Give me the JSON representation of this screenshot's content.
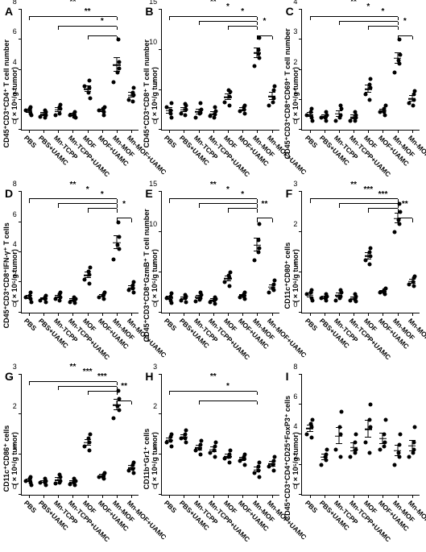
{
  "groups": [
    "PBS",
    "PBS+UAMC",
    "Mn-TCPP",
    "Mn-TCPP+UAMC",
    "MOF",
    "MOF+UAMC",
    "Mn-MOF",
    "Mn-MOF+UAMC"
  ],
  "colors": {
    "dot": "#000000",
    "axis": "#000000",
    "bg": "#ffffff"
  },
  "font": {
    "panel_letter_size": 14,
    "axis_label_size": 9,
    "tick_size": 9,
    "xlabel_size": 8.5
  },
  "panels": [
    {
      "id": "A",
      "ylabel": "CD45⁺CD3⁺CD4⁺ T cell number\n(×10⁶/g tumor)",
      "ymax": 8,
      "ytick": 2,
      "points": [
        [
          1.3,
          1.0,
          1.5,
          1.1,
          1.4
        ],
        [
          0.9,
          1.2,
          1.0,
          1.3,
          0.8
        ],
        [
          1.0,
          1.7,
          1.4,
          1.1,
          1.5
        ],
        [
          1.0,
          0.8,
          1.2,
          0.9,
          1.1
        ],
        [
          2.9,
          2.1,
          3.3,
          2.8,
          2.5
        ],
        [
          1.3,
          1.5,
          1.0,
          1.2,
          1.4
        ],
        [
          3.2,
          4.1,
          4.5,
          6.0,
          3.8
        ],
        [
          2.0,
          2.8,
          2.3,
          2.5,
          1.9
        ]
      ],
      "sig": [
        {
          "from": 0,
          "to": 6,
          "lvl": 3,
          "txt": "**"
        },
        {
          "from": 2,
          "to": 6,
          "lvl": 2,
          "txt": "**"
        },
        {
          "from": 4,
          "to": 6,
          "lvl": 1,
          "txt": "*"
        }
      ]
    },
    {
      "id": "B",
      "ylabel": "CD45⁺CD3⁺CD8⁺ T cell number\n(×10⁶/g tumor)",
      "ymax": 15,
      "ytick": 5,
      "points": [
        [
          2.8,
          1.5,
          3.3,
          2.0,
          2.4
        ],
        [
          2.0,
          3.0,
          2.5,
          1.8,
          3.2
        ],
        [
          1.5,
          2.5,
          2.1,
          3.3,
          2.0
        ],
        [
          1.7,
          2.3,
          1.9,
          2.8,
          1.5
        ],
        [
          3.5,
          4.8,
          4.2,
          3.0,
          5.0
        ],
        [
          2.3,
          3.0,
          2.0,
          2.5,
          2.8
        ],
        [
          8.0,
          11.5,
          9.0,
          10.0,
          9.5
        ],
        [
          3.0,
          5.5,
          4.0,
          5.0,
          3.5
        ]
      ],
      "sig": [
        {
          "from": 0,
          "to": 6,
          "lvl": 3,
          "txt": "**"
        },
        {
          "from": 4,
          "to": 6,
          "lvl": 2,
          "txt": "*"
        },
        {
          "from": 6,
          "to": 7,
          "lvl": 1,
          "txt": "*"
        },
        {
          "from": 2,
          "to": 6,
          "lvl": 2.5,
          "txt": "*"
        }
      ]
    },
    {
      "id": "C",
      "ylabel": "CD45⁺CD3⁺CD8⁺CD69⁺ T cell number\n(×10⁶/g tumor)",
      "ymax": 4,
      "ytick": 1,
      "points": [
        [
          0.5,
          0.3,
          0.7,
          0.4,
          0.6
        ],
        [
          0.4,
          0.5,
          0.3,
          0.6,
          0.4
        ],
        [
          0.3,
          0.7,
          0.5,
          0.8,
          0.4
        ],
        [
          0.3,
          0.5,
          0.4,
          0.6,
          0.3
        ],
        [
          1.2,
          1.7,
          1.4,
          1.0,
          1.5
        ],
        [
          0.6,
          0.8,
          0.5,
          0.7,
          0.6
        ],
        [
          1.9,
          2.5,
          2.2,
          3.0,
          2.3
        ],
        [
          0.9,
          1.3,
          1.0,
          1.2,
          0.8
        ]
      ],
      "sig": [
        {
          "from": 0,
          "to": 6,
          "lvl": 3,
          "txt": "**"
        },
        {
          "from": 2,
          "to": 6,
          "lvl": 2.5,
          "txt": "*"
        },
        {
          "from": 4,
          "to": 6,
          "lvl": 2,
          "txt": "*"
        },
        {
          "from": 6,
          "to": 7,
          "lvl": 1,
          "txt": "*"
        }
      ]
    },
    {
      "id": "D",
      "ylabel": "CD45⁺CD3⁺CD8⁺IFN-γ⁺ T cells\n(×10⁵/g tumor)",
      "ymax": 8,
      "ytick": 2,
      "points": [
        [
          1.0,
          0.7,
          1.3,
          0.9,
          1.1
        ],
        [
          0.8,
          1.1,
          0.7,
          1.0,
          0.9
        ],
        [
          0.9,
          1.3,
          1.0,
          0.8,
          1.2
        ],
        [
          0.7,
          0.9,
          0.6,
          1.0,
          0.8
        ],
        [
          2.2,
          3.0,
          2.5,
          1.9,
          2.7
        ],
        [
          1.0,
          1.3,
          0.9,
          1.2,
          1.1
        ],
        [
          3.5,
          5.0,
          4.2,
          6.0,
          4.5
        ],
        [
          1.5,
          2.0,
          1.3,
          1.8,
          1.6
        ]
      ],
      "sig": [
        {
          "from": 0,
          "to": 6,
          "lvl": 3,
          "txt": "**"
        },
        {
          "from": 2,
          "to": 6,
          "lvl": 2.5,
          "txt": "*"
        },
        {
          "from": 4,
          "to": 6,
          "lvl": 2,
          "txt": "*"
        },
        {
          "from": 6,
          "to": 7,
          "lvl": 1,
          "txt": "*"
        }
      ]
    },
    {
      "id": "E",
      "ylabel": "CD45⁺CD3⁺CD8⁺GzmB⁺ T cell number\n(×10⁵/g tumor)",
      "ymax": 15,
      "ytick": 5,
      "points": [
        [
          1.8,
          1.2,
          2.4,
          1.5,
          2.0
        ],
        [
          1.5,
          2.0,
          1.3,
          1.8,
          2.2
        ],
        [
          1.4,
          2.2,
          1.8,
          2.5,
          1.6
        ],
        [
          1.3,
          1.7,
          1.1,
          1.9,
          1.5
        ],
        [
          3.8,
          5.0,
          4.3,
          3.3,
          4.6
        ],
        [
          1.9,
          2.5,
          1.7,
          2.3,
          2.0
        ],
        [
          6.5,
          11.0,
          8.0,
          9.0,
          7.5
        ],
        [
          2.5,
          4.0,
          2.8,
          3.5,
          3.0
        ]
      ],
      "sig": [
        {
          "from": 0,
          "to": 6,
          "lvl": 3,
          "txt": "**"
        },
        {
          "from": 2,
          "to": 6,
          "lvl": 2.5,
          "txt": "*"
        },
        {
          "from": 4,
          "to": 6,
          "lvl": 2,
          "txt": "*"
        },
        {
          "from": 6,
          "to": 7,
          "lvl": 1,
          "txt": "**"
        }
      ]
    },
    {
      "id": "F",
      "ylabel": "CD11c⁺CD80⁺ cells\n(×10⁶/g tumor)",
      "ymax": 3,
      "ytick": 1,
      "points": [
        [
          0.45,
          0.3,
          0.55,
          0.35,
          0.5
        ],
        [
          0.35,
          0.4,
          0.3,
          0.45,
          0.35
        ],
        [
          0.3,
          0.5,
          0.4,
          0.55,
          0.35
        ],
        [
          0.3,
          0.4,
          0.28,
          0.45,
          0.32
        ],
        [
          1.3,
          1.6,
          1.4,
          1.2,
          1.5
        ],
        [
          0.5,
          0.6,
          0.45,
          0.55,
          0.5
        ],
        [
          2.0,
          2.5,
          2.2,
          2.7,
          2.3
        ],
        [
          0.7,
          0.9,
          0.65,
          0.85,
          0.75
        ]
      ],
      "sig": [
        {
          "from": 0,
          "to": 6,
          "lvl": 3,
          "txt": "**"
        },
        {
          "from": 2,
          "to": 6,
          "lvl": 2.5,
          "txt": "***"
        },
        {
          "from": 4,
          "to": 6,
          "lvl": 2,
          "txt": "***"
        },
        {
          "from": 6,
          "to": 7,
          "lvl": 1,
          "txt": "**"
        }
      ]
    },
    {
      "id": "G",
      "ylabel": "CD11c⁺CD86⁺ cells\n(×10⁶/g tumor)",
      "ymax": 3,
      "ytick": 1,
      "points": [
        [
          0.35,
          0.25,
          0.45,
          0.3,
          0.4
        ],
        [
          0.3,
          0.35,
          0.25,
          0.4,
          0.3
        ],
        [
          0.28,
          0.45,
          0.35,
          0.5,
          0.3
        ],
        [
          0.27,
          0.35,
          0.25,
          0.4,
          0.3
        ],
        [
          1.2,
          1.5,
          1.3,
          1.1,
          1.4
        ],
        [
          0.45,
          0.55,
          0.4,
          0.5,
          0.45
        ],
        [
          1.9,
          2.4,
          2.1,
          2.6,
          2.2
        ],
        [
          0.6,
          0.8,
          0.55,
          0.75,
          0.65
        ]
      ],
      "sig": [
        {
          "from": 0,
          "to": 6,
          "lvl": 3,
          "txt": "**"
        },
        {
          "from": 2,
          "to": 6,
          "lvl": 2.5,
          "txt": "***"
        },
        {
          "from": 4,
          "to": 6,
          "lvl": 2,
          "txt": "***"
        },
        {
          "from": 6,
          "to": 7,
          "lvl": 1,
          "txt": "**"
        }
      ]
    },
    {
      "id": "H",
      "ylabel": "CD11b⁺Gr1⁺ cells\n(×10⁶/g tumor)",
      "ymax": 3,
      "ytick": 1,
      "points": [
        [
          1.3,
          1.5,
          1.2,
          1.45,
          1.35
        ],
        [
          1.4,
          1.6,
          1.3,
          1.5,
          1.4
        ],
        [
          1.1,
          1.35,
          1.0,
          1.25,
          1.15
        ],
        [
          1.05,
          1.3,
          0.95,
          1.2,
          1.1
        ],
        [
          0.9,
          1.1,
          0.8,
          1.0,
          0.95
        ],
        [
          0.85,
          1.0,
          0.75,
          0.95,
          0.9
        ],
        [
          0.55,
          0.8,
          0.45,
          0.7,
          0.6
        ],
        [
          0.7,
          0.95,
          0.6,
          0.85,
          0.75
        ]
      ],
      "sig": [
        {
          "from": 0,
          "to": 6,
          "lvl": 2,
          "txt": "**"
        },
        {
          "from": 2,
          "to": 6,
          "lvl": 1,
          "txt": "*"
        }
      ]
    },
    {
      "id": "I",
      "ylabel": "CD45⁺CD3⁺CD4⁺CD25⁺FoxP3⁺ cells\n(×10⁵/g tumor)",
      "ymax": 8,
      "ytick": 2,
      "points": [
        [
          4.0,
          5.0,
          4.5,
          3.8,
          4.7
        ],
        [
          2.0,
          3.0,
          2.3,
          2.7,
          2.5
        ],
        [
          3.0,
          5.5,
          4.0,
          2.5,
          4.5
        ],
        [
          2.5,
          4.0,
          3.0,
          3.5,
          2.8
        ],
        [
          3.5,
          6.0,
          4.5,
          2.8,
          5.0
        ],
        [
          3.0,
          5.0,
          3.5,
          4.0,
          3.2
        ],
        [
          2.0,
          4.0,
          2.5,
          3.3,
          2.8
        ],
        [
          2.5,
          4.5,
          3.0,
          3.5,
          2.8
        ]
      ],
      "sig": []
    }
  ]
}
